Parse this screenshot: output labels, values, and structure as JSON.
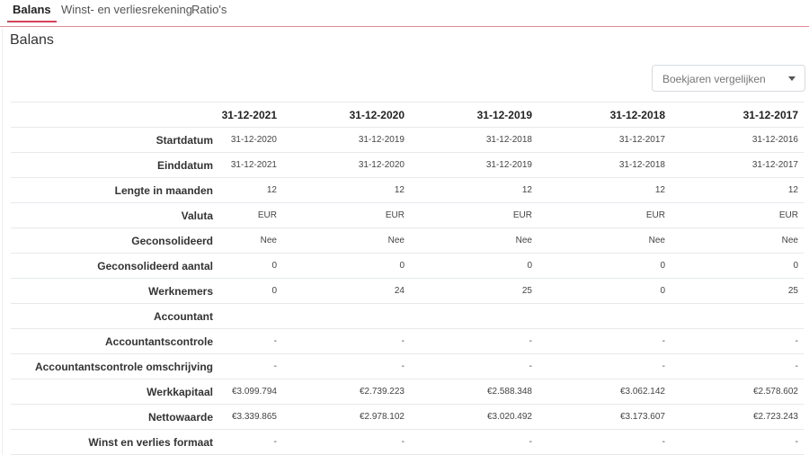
{
  "tabs": [
    {
      "label": "Balans",
      "active": true
    },
    {
      "label": "Winst- en verliesrekening",
      "active": false
    },
    {
      "label": "Ratio's",
      "active": false
    }
  ],
  "page_title": "Balans",
  "compare_dropdown": {
    "placeholder": "Boekjaren vergelijken",
    "icon": "chevron-down-icon"
  },
  "table": {
    "columns": [
      "31-12-2021",
      "31-12-2020",
      "31-12-2019",
      "31-12-2018",
      "31-12-2017"
    ],
    "rows": [
      {
        "label": "Startdatum",
        "values": [
          "31-12-2020",
          "31-12-2019",
          "31-12-2018",
          "31-12-2017",
          "31-12-2016"
        ]
      },
      {
        "label": "Einddatum",
        "values": [
          "31-12-2021",
          "31-12-2020",
          "31-12-2019",
          "31-12-2018",
          "31-12-2017"
        ]
      },
      {
        "label": "Lengte in maanden",
        "values": [
          "12",
          "12",
          "12",
          "12",
          "12"
        ]
      },
      {
        "label": "Valuta",
        "values": [
          "EUR",
          "EUR",
          "EUR",
          "EUR",
          "EUR"
        ]
      },
      {
        "label": "Geconsolideerd",
        "values": [
          "Nee",
          "Nee",
          "Nee",
          "Nee",
          "Nee"
        ]
      },
      {
        "label": "Geconsolideerd aantal",
        "values": [
          "0",
          "0",
          "0",
          "0",
          "0"
        ]
      },
      {
        "label": "Werknemers",
        "values": [
          "0",
          "24",
          "25",
          "0",
          "25"
        ]
      },
      {
        "label": "Accountant",
        "values": [
          "",
          "",
          "",
          "",
          ""
        ]
      },
      {
        "label": "Accountantscontrole",
        "values": [
          "-",
          "-",
          "-",
          "-",
          "-"
        ]
      },
      {
        "label": "Accountantscontrole omschrijving",
        "values": [
          "-",
          "-",
          "-",
          "-",
          "-"
        ]
      },
      {
        "label": "Werkkapitaal",
        "values": [
          "€3.099.794",
          "€2.739.223",
          "€2.588.348",
          "€3.062.142",
          "€2.578.602"
        ]
      },
      {
        "label": "Nettowaarde",
        "values": [
          "€3.339.865",
          "€2.978.102",
          "€3.020.492",
          "€3.173.607",
          "€2.723.243"
        ]
      },
      {
        "label": "Winst en verlies formaat",
        "values": [
          "-",
          "-",
          "-",
          "-",
          "-"
        ]
      }
    ]
  }
}
